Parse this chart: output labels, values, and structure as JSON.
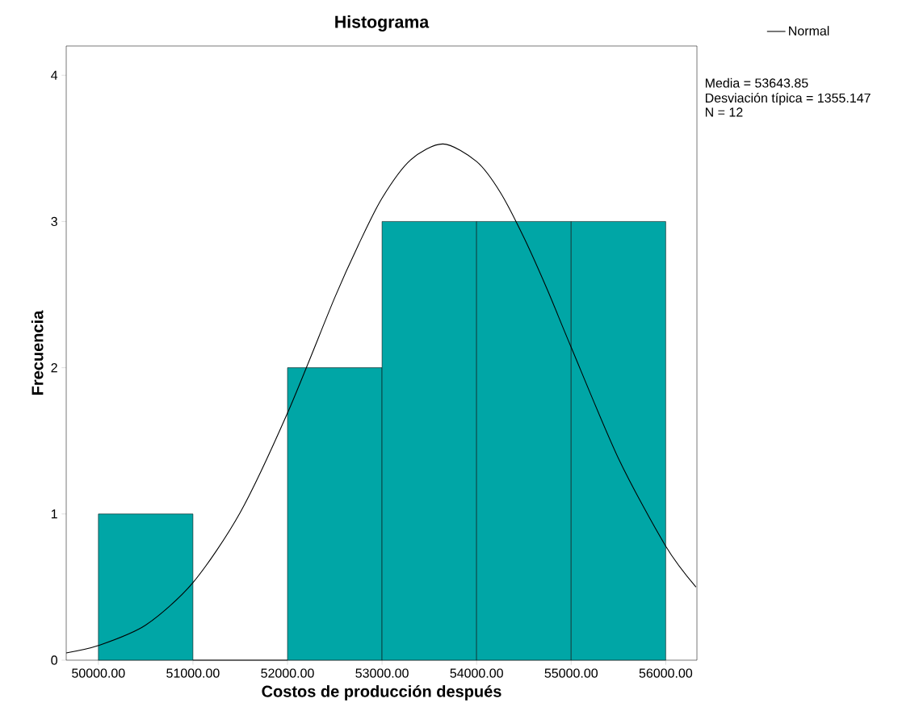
{
  "chart_data": {
    "type": "histogram",
    "title": "Histograma",
    "xlabel": "Costos de producción después",
    "ylabel": "Frecuencia",
    "bins": [
      50000,
      51000,
      52000,
      53000,
      54000,
      55000,
      56000
    ],
    "values": [
      1,
      0,
      2,
      3,
      3,
      3
    ],
    "color": "#00a6a6",
    "series": [
      {
        "name": "Normal",
        "type": "line",
        "color": "#000000",
        "x": [
          49660,
          50000,
          50500,
          51000,
          51500,
          52000,
          52500,
          52750,
          53000,
          53300,
          53644,
          54000,
          54250,
          54500,
          54750,
          55000,
          55500,
          56000,
          56320
        ],
        "values": [
          0.05,
          0.1,
          0.24,
          0.53,
          1.01,
          1.69,
          2.48,
          2.84,
          3.16,
          3.42,
          3.53,
          3.41,
          3.2,
          2.89,
          2.53,
          2.14,
          1.38,
          0.78,
          0.5
        ]
      }
    ],
    "xlim": [
      49660,
      56330
    ],
    "ylim": [
      0,
      4.2
    ],
    "xticks": [
      {
        "value": 50000,
        "label": "50000.00"
      },
      {
        "value": 51000,
        "label": "51000.00"
      },
      {
        "value": 52000,
        "label": "52000.00"
      },
      {
        "value": 53000,
        "label": "53000.00"
      },
      {
        "value": 54000,
        "label": "54000.00"
      },
      {
        "value": 55000,
        "label": "55000.00"
      },
      {
        "value": 56000,
        "label": "56000.00"
      }
    ],
    "yticks": [
      0,
      1,
      2,
      3,
      4
    ],
    "annotations": [
      "Media = 53643.85",
      "Desviación típica = 1355.147",
      "N = 12"
    ],
    "legend": "top right",
    "grid": false,
    "marker": "none",
    "line_style": "solid"
  }
}
